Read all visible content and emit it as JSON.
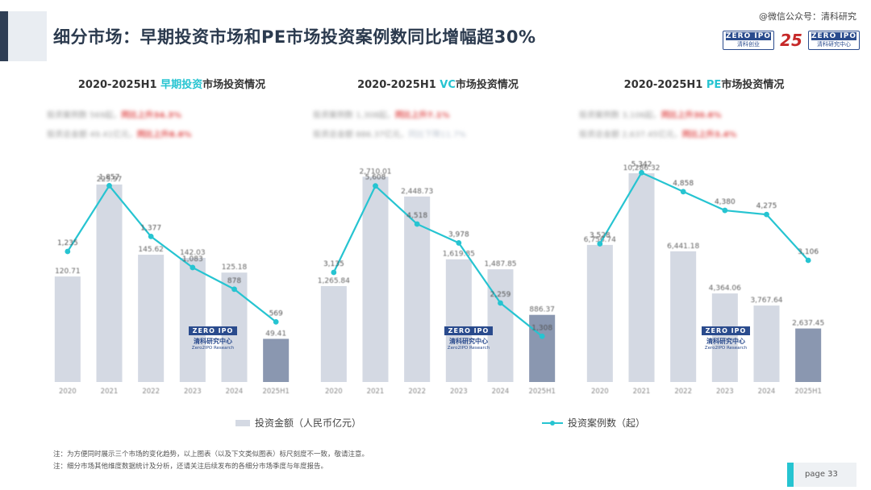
{
  "header": {
    "title": "细分市场：早期投资市场和PE市场投资案例数同比增幅超30%",
    "wechat_label": "@微信公众号：清科研究",
    "logos": [
      {
        "top": "ZERO IPO",
        "sub": "清科创业"
      },
      {
        "top": "25",
        "sub": ""
      },
      {
        "top": "ZERO IPO",
        "sub": "清科研究中心"
      }
    ]
  },
  "colors": {
    "bar": "#d4d9e3",
    "bar_highlight": "#8a97b0",
    "line": "#26c4d1",
    "accent": "#26c4d1",
    "red": "#e05050"
  },
  "watermark": {
    "top": "ZERO IPO",
    "cn": "清科研究中心",
    "en": "Zero2IPO Research"
  },
  "legend": {
    "bar_label": "投资金额（人民币亿元）",
    "line_label": "投资案例数（起）"
  },
  "notes": [
    "注：为方便同时展示三个市场的变化趋势，以上图表（以及下文类似图表）标尺刻度不一致，敬请注意。",
    "注：细分市场其他维度数据统计及分析，还请关注后续发布的各细分市场季度与年度报告。"
  ],
  "page_number": "page  33",
  "chart_data": [
    {
      "type": "bar",
      "title_prefix": "2020-2025H1 ",
      "title_accent": "早期投资",
      "title_suffix": "市场投资情况",
      "stat1": {
        "text": "投资案例数 569起，",
        "highlight": "同比上升34.3%"
      },
      "stat2": {
        "text": "投资总金额 49.41亿元，",
        "highlight": "同比上升8.6%"
      },
      "categories": [
        "2020",
        "2021",
        "2022",
        "2023",
        "2024",
        "2025H1"
      ],
      "series": [
        {
          "values": [
            120.71,
            225.97,
            145.62,
            142.03,
            125.18,
            49.41
          ]
        },
        {
          "values": [
            1235,
            1857,
            1377,
            1083,
            878,
            569
          ]
        }
      ],
      "bar_labels": [
        "120.71",
        "225.97",
        "145.62",
        "142.03",
        "125.18",
        "49.41"
      ],
      "line_labels": [
        "1,235",
        "1,857",
        "1,377",
        "1,083",
        "878",
        "569"
      ],
      "bar_ylim": [
        0,
        260
      ],
      "line_ylim": [
        0,
        2150
      ]
    },
    {
      "type": "bar",
      "title_prefix": "2020-2025H1 ",
      "title_accent": "VC",
      "title_suffix": "市场投资情况",
      "stat1": {
        "text": "投资案例数 1,308起，",
        "highlight": "同比上升7.1%"
      },
      "stat2": {
        "text": "投资总金额 886.37亿元，",
        "highlight": "同比下降11.7%"
      },
      "categories": [
        "2020",
        "2021",
        "2022",
        "2023",
        "2024",
        "2025H1"
      ],
      "series": [
        {
          "values": [
            1265.84,
            2710.01,
            2448.73,
            1619.85,
            1487.85,
            886.37
          ]
        },
        {
          "values": [
            3135,
            5608,
            4518,
            3978,
            2259,
            1308
          ]
        }
      ],
      "bar_labels": [
        "1,265.84",
        "2,710.01",
        "2,448.73",
        "1,619.85",
        "1,487.85",
        "886.37"
      ],
      "line_labels": [
        "3,135",
        "5,608",
        "4,518",
        "3,978",
        "2,259",
        "1,308"
      ],
      "bar_ylim": [
        0,
        3000
      ],
      "line_ylim": [
        0,
        6500
      ]
    },
    {
      "type": "bar",
      "title_prefix": "2020-2025H1 ",
      "title_accent": "PE",
      "title_suffix": "市场投资情况",
      "stat1": {
        "text": "投资案例数 3,106起，",
        "highlight": "同比上升30.6%"
      },
      "stat2": {
        "text": "投资总金额 2,637.45亿元，",
        "highlight": "同比上升3.4%"
      },
      "categories": [
        "2020",
        "2021",
        "2022",
        "2023",
        "2024",
        "2025H1"
      ],
      "series": [
        {
          "values": [
            6756.74,
            10286.32,
            6441.18,
            4364.06,
            3767.64,
            2637.45
          ]
        },
        {
          "values": [
            3528,
            5342,
            4858,
            4380,
            4275,
            3106
          ]
        }
      ],
      "bar_labels": [
        "6,756.74",
        "10,286.32",
        "6,441.18",
        "4,364.06",
        "3,767.64",
        "2,637.45"
      ],
      "line_labels": [
        "3,528",
        "5,342",
        "4,858",
        "4,380",
        "4,275",
        "3,106"
      ],
      "bar_ylim": [
        0,
        11200
      ],
      "line_ylim": [
        0,
        5800
      ]
    }
  ]
}
